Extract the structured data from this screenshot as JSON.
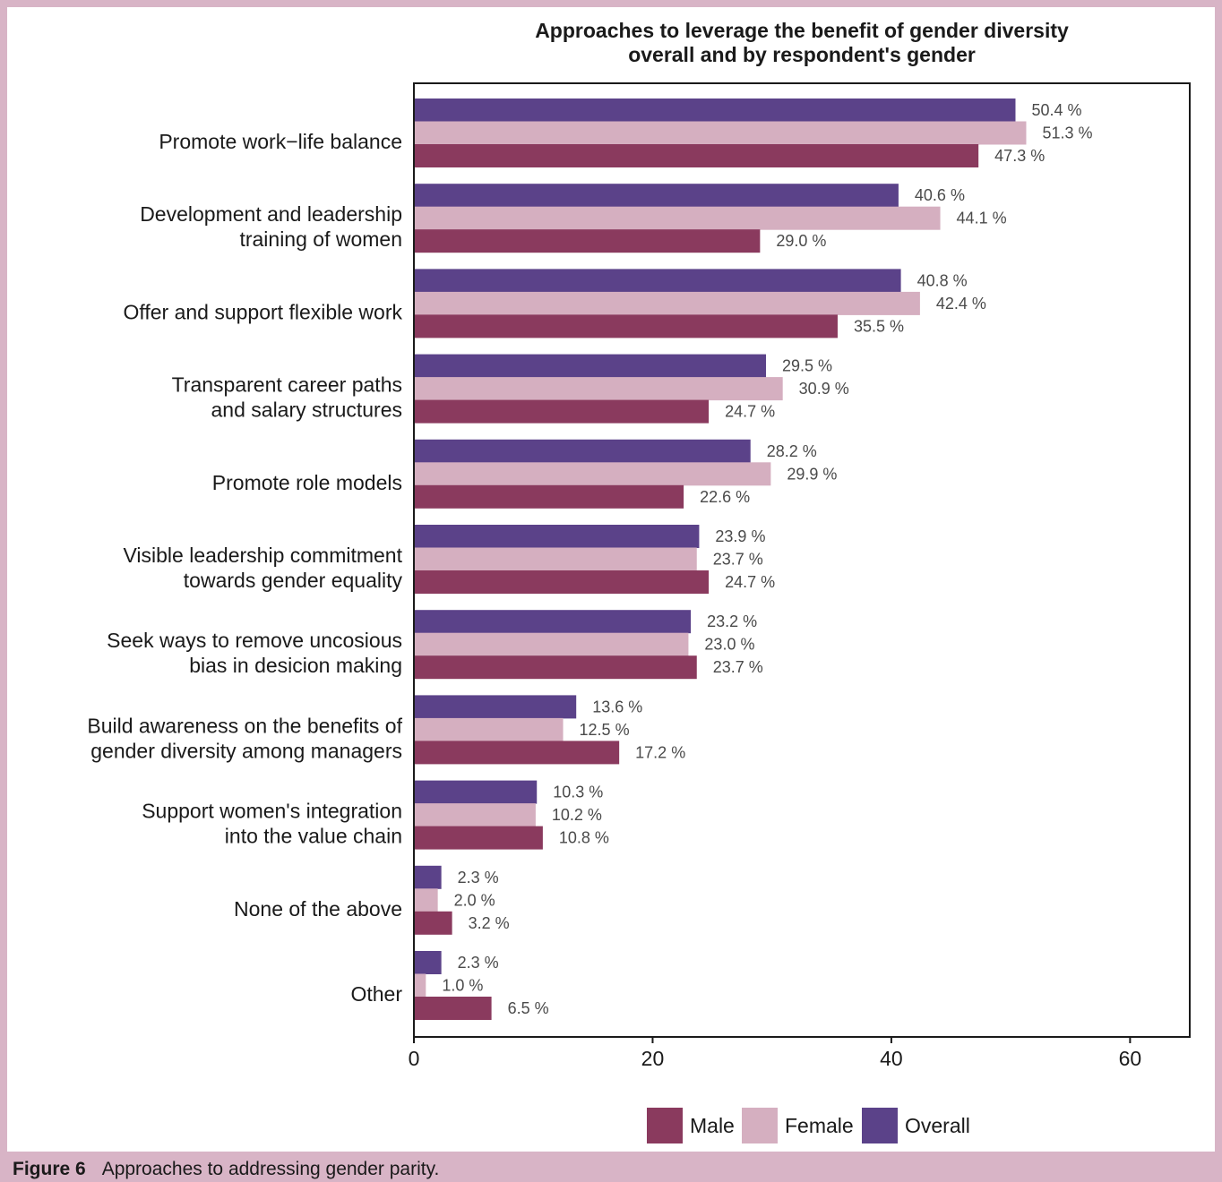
{
  "caption": {
    "label": "Figure 6",
    "text": "Approaches to addressing gender parity."
  },
  "chart_data": {
    "type": "bar",
    "orientation": "horizontal",
    "title_lines": [
      "Approaches to leverage the benefit of gender diversity",
      "overall and by respondent's gender"
    ],
    "categories": [
      [
        "Promote work−life balance"
      ],
      [
        "Development and leadership",
        "training of women"
      ],
      [
        "Offer and support flexible work"
      ],
      [
        "Transparent career paths",
        "and salary structures"
      ],
      [
        "Promote role models"
      ],
      [
        "Visible leadership commitment",
        "towards gender equality"
      ],
      [
        "Seek ways to remove uncosious",
        "bias in desicion making"
      ],
      [
        "Build awareness on the benefits of",
        "gender diversity among managers"
      ],
      [
        "Support women's integration",
        "into the value chain"
      ],
      [
        "None of the above"
      ],
      [
        "Other"
      ]
    ],
    "series": [
      {
        "name": "Overall",
        "color": "#5b4289",
        "values": [
          50.4,
          40.6,
          40.8,
          29.5,
          28.2,
          23.9,
          23.2,
          13.6,
          10.3,
          2.3,
          2.3
        ],
        "labels": [
          "50.4 %",
          "40.6 %",
          "40.8 %",
          "29.5 %",
          "28.2 %",
          "23.9 %",
          "23.2 %",
          "13.6 %",
          "10.3 %",
          "2.3 %",
          "2.3 %"
        ]
      },
      {
        "name": "Female",
        "color": "#d5afc0",
        "values": [
          51.3,
          44.1,
          42.4,
          30.9,
          29.9,
          23.7,
          23.0,
          12.5,
          10.2,
          2.0,
          1.0
        ],
        "labels": [
          "51.3 %",
          "44.1 %",
          "42.4 %",
          "30.9 %",
          "29.9 %",
          "23.7 %",
          "23.0 %",
          "12.5 %",
          "10.2 %",
          "2.0 %",
          "1.0 %"
        ]
      },
      {
        "name": "Male",
        "color": "#8a3a5e",
        "values": [
          47.3,
          29.0,
          35.5,
          24.7,
          22.6,
          24.7,
          23.7,
          17.2,
          10.8,
          3.2,
          6.5
        ],
        "labels": [
          "47.3 %",
          "29.0 %",
          "35.5 %",
          "24.7 %",
          "22.6 %",
          "24.7 %",
          "23.7 %",
          "17.2 %",
          "10.8 %",
          "3.2 %",
          "6.5 %"
        ]
      }
    ],
    "xlim": [
      0,
      65
    ],
    "xticks": [
      0,
      20,
      40,
      60
    ],
    "grid": false,
    "legend": {
      "placement": "bottom",
      "order": [
        "Male",
        "Female",
        "Overall"
      ]
    }
  }
}
